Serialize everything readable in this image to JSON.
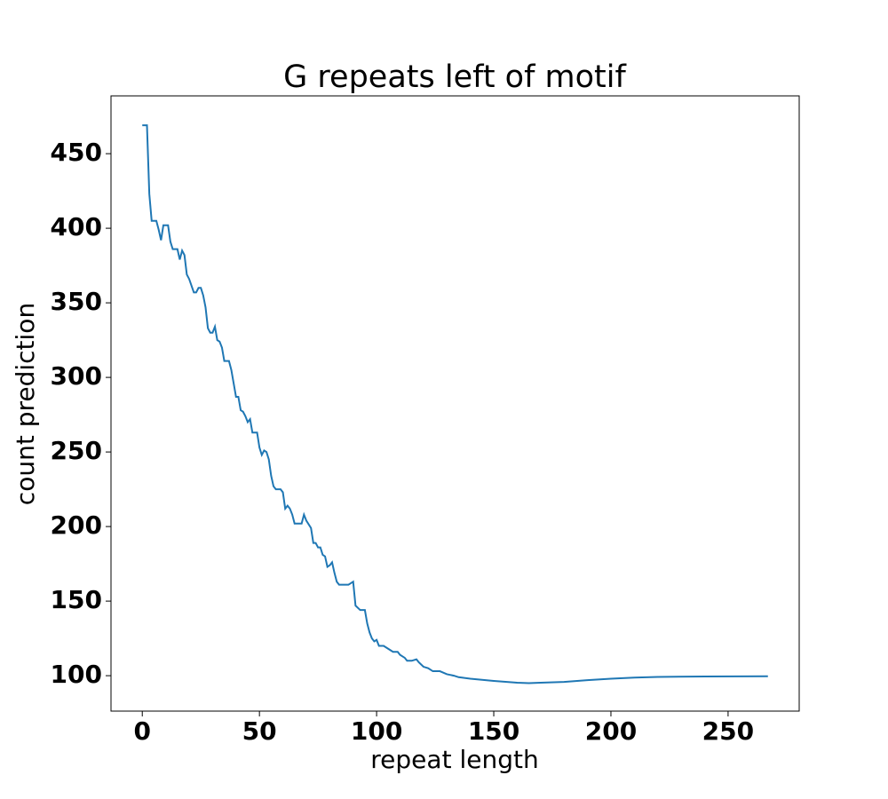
{
  "chart_data": {
    "type": "line",
    "title": "G repeats left of motif",
    "x_label": "repeat length",
    "y_label": "count prediction",
    "x": [
      0,
      2,
      3,
      4,
      6,
      7,
      8,
      9,
      11,
      12,
      13,
      15,
      16,
      17,
      18,
      19,
      20,
      22,
      23,
      24,
      25,
      26,
      27,
      28,
      29,
      30,
      31,
      32,
      33,
      34,
      35,
      37,
      38,
      39,
      40,
      41,
      42,
      43,
      44,
      45,
      46,
      47,
      49,
      50,
      51,
      52,
      53,
      54,
      55,
      56,
      57,
      59,
      60,
      61,
      62,
      63,
      64,
      65,
      68,
      69,
      70,
      72,
      73,
      74,
      75,
      76,
      77,
      78,
      79,
      80,
      81,
      82,
      83,
      84,
      88,
      89,
      90,
      91,
      93,
      95,
      96,
      97,
      98,
      99,
      100,
      101,
      103,
      105,
      107,
      109,
      110,
      112,
      113,
      115,
      117,
      118,
      120,
      122,
      124,
      127,
      130,
      133,
      135,
      140,
      150,
      160,
      165,
      170,
      180,
      190,
      200,
      210,
      220,
      240,
      267
    ],
    "series": [
      {
        "name": "count prediction",
        "color": "#1f77b4",
        "values": [
          469,
          469,
          423,
          405,
          405,
          399,
          392,
          402,
          402,
          391,
          386,
          386,
          379,
          385,
          382,
          369,
          366,
          357,
          357,
          360,
          360,
          355,
          347,
          333,
          330,
          330,
          334,
          325,
          324,
          320,
          311,
          311,
          305,
          296,
          287,
          287,
          278,
          277,
          274,
          270,
          272,
          263,
          263,
          253,
          248,
          251,
          250,
          245,
          234,
          227,
          225,
          225,
          223,
          212,
          214,
          212,
          208,
          202,
          202,
          208,
          204,
          199,
          189,
          189,
          186,
          186,
          181,
          180,
          173,
          174,
          176,
          169,
          163,
          161,
          161,
          162,
          163,
          147,
          144,
          144,
          135,
          129,
          125,
          123,
          124,
          120,
          120,
          118,
          116,
          116,
          114,
          112,
          110,
          110,
          111,
          109,
          106,
          105,
          103,
          103,
          101,
          100,
          99,
          98,
          96.5,
          95.3,
          95,
          95.3,
          95.8,
          97,
          98,
          98.7,
          99.2,
          99.5,
          99.6
        ]
      }
    ],
    "xlim": [
      -13.35,
      280.35
    ],
    "ylim": [
      76.25,
      488.75
    ],
    "xticks": [
      0,
      50,
      100,
      150,
      200,
      250
    ],
    "yticks": [
      100,
      150,
      200,
      250,
      300,
      350,
      400,
      450
    ]
  }
}
